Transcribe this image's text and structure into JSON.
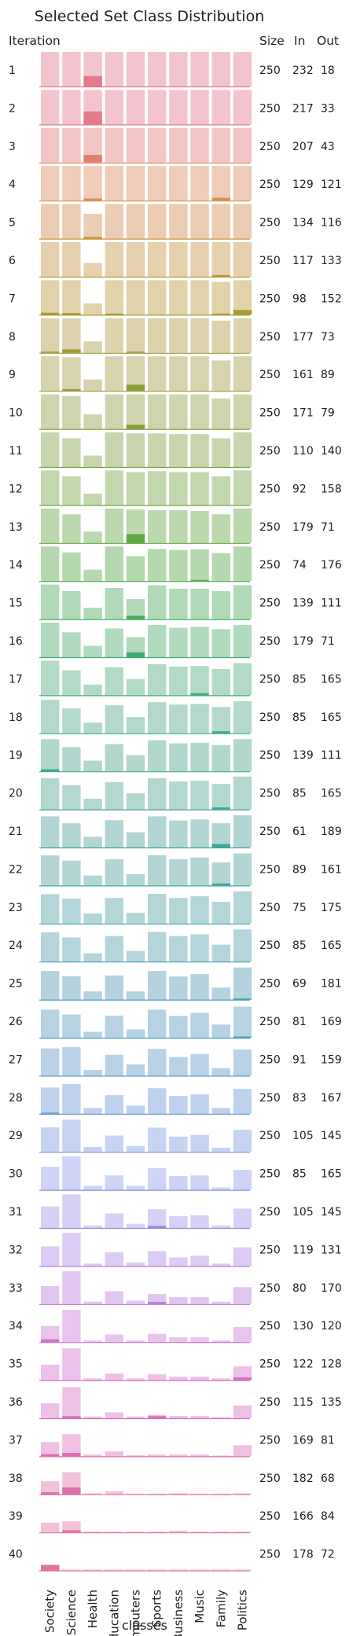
{
  "chart_data": {
    "type": "bar",
    "title": "Selected Set Class Distribution",
    "xlabel": "classes",
    "ylabel": "Iteration",
    "categories": [
      "Society",
      "Science",
      "Health",
      "Education",
      "Computers",
      "Sports",
      "Business",
      "Music",
      "Family",
      "Politics"
    ],
    "columns": {
      "size": "Size",
      "in": "In",
      "out": "Out"
    },
    "grid": false,
    "rows": [
      {
        "iteration": "1",
        "size": "250",
        "in": "232",
        "out": "18"
      },
      {
        "iteration": "2",
        "size": "250",
        "in": "217",
        "out": "33"
      },
      {
        "iteration": "3",
        "size": "250",
        "in": "207",
        "out": "43"
      },
      {
        "iteration": "4",
        "size": "250",
        "in": "129",
        "out": "121"
      },
      {
        "iteration": "5",
        "size": "250",
        "in": "134",
        "out": "116"
      },
      {
        "iteration": "6",
        "size": "250",
        "in": "117",
        "out": "133"
      },
      {
        "iteration": "7",
        "size": "250",
        "in": "98",
        "out": "152"
      },
      {
        "iteration": "8",
        "size": "250",
        "in": "177",
        "out": "73"
      },
      {
        "iteration": "9",
        "size": "250",
        "in": "161",
        "out": "89"
      },
      {
        "iteration": "10",
        "size": "250",
        "in": "171",
        "out": "79"
      },
      {
        "iteration": "11",
        "size": "250",
        "in": "110",
        "out": "140"
      },
      {
        "iteration": "12",
        "size": "250",
        "in": "92",
        "out": "158"
      },
      {
        "iteration": "13",
        "size": "250",
        "in": "179",
        "out": "71"
      },
      {
        "iteration": "14",
        "size": "250",
        "in": "74",
        "out": "176"
      },
      {
        "iteration": "15",
        "size": "250",
        "in": "139",
        "out": "111"
      },
      {
        "iteration": "16",
        "size": "250",
        "in": "179",
        "out": "71"
      },
      {
        "iteration": "17",
        "size": "250",
        "in": "85",
        "out": "165"
      },
      {
        "iteration": "18",
        "size": "250",
        "in": "85",
        "out": "165"
      },
      {
        "iteration": "19",
        "size": "250",
        "in": "139",
        "out": "111"
      },
      {
        "iteration": "20",
        "size": "250",
        "in": "85",
        "out": "165"
      },
      {
        "iteration": "21",
        "size": "250",
        "in": "61",
        "out": "189"
      },
      {
        "iteration": "22",
        "size": "250",
        "in": "89",
        "out": "161"
      },
      {
        "iteration": "23",
        "size": "250",
        "in": "75",
        "out": "175"
      },
      {
        "iteration": "24",
        "size": "250",
        "in": "85",
        "out": "165"
      },
      {
        "iteration": "25",
        "size": "250",
        "in": "69",
        "out": "181"
      },
      {
        "iteration": "26",
        "size": "250",
        "in": "81",
        "out": "169"
      },
      {
        "iteration": "27",
        "size": "250",
        "in": "91",
        "out": "159"
      },
      {
        "iteration": "28",
        "size": "250",
        "in": "83",
        "out": "167"
      },
      {
        "iteration": "29",
        "size": "250",
        "in": "105",
        "out": "145"
      },
      {
        "iteration": "30",
        "size": "250",
        "in": "85",
        "out": "165"
      },
      {
        "iteration": "31",
        "size": "250",
        "in": "105",
        "out": "145"
      },
      {
        "iteration": "32",
        "size": "250",
        "in": "119",
        "out": "131"
      },
      {
        "iteration": "33",
        "size": "250",
        "in": "80",
        "out": "170"
      },
      {
        "iteration": "34",
        "size": "250",
        "in": "130",
        "out": "120"
      },
      {
        "iteration": "35",
        "size": "250",
        "in": "122",
        "out": "128"
      },
      {
        "iteration": "36",
        "size": "250",
        "in": "115",
        "out": "135"
      },
      {
        "iteration": "37",
        "size": "250",
        "in": "169",
        "out": "81"
      },
      {
        "iteration": "38",
        "size": "250",
        "in": "182",
        "out": "68"
      },
      {
        "iteration": "39",
        "size": "250",
        "in": "166",
        "out": "84"
      },
      {
        "iteration": "40",
        "size": "250",
        "in": "178",
        "out": "72"
      }
    ],
    "pool_distribution": [
      [
        1,
        1,
        1,
        1,
        1,
        1,
        1,
        1,
        1,
        1
      ],
      [
        1,
        1,
        1,
        1,
        1,
        1,
        1,
        1,
        1,
        1
      ],
      [
        1,
        1,
        1,
        1,
        1,
        1,
        1,
        1,
        1,
        1
      ],
      [
        1,
        1,
        1,
        1,
        1,
        1,
        1,
        1,
        1,
        1
      ],
      [
        1,
        1,
        0.72,
        1,
        1,
        1,
        1,
        1,
        1,
        1
      ],
      [
        1,
        1,
        0.4,
        1,
        1,
        1,
        1,
        1,
        1,
        1
      ],
      [
        1,
        1,
        0.33,
        1,
        1,
        1,
        1,
        1,
        0.95,
        1
      ],
      [
        1,
        1,
        0.33,
        1,
        1,
        1,
        1,
        1,
        0.93,
        1
      ],
      [
        1,
        0.97,
        0.33,
        1,
        1,
        1,
        1,
        1,
        0.88,
        1
      ],
      [
        1,
        0.95,
        0.42,
        1,
        1,
        1,
        1,
        1,
        0.88,
        1
      ],
      [
        1,
        0.83,
        0.33,
        1,
        0.97,
        0.97,
        0.95,
        0.95,
        0.83,
        1
      ],
      [
        1,
        0.83,
        0.33,
        1,
        0.95,
        0.98,
        0.95,
        0.95,
        0.83,
        1
      ],
      [
        1,
        0.83,
        0.33,
        1,
        0.97,
        0.95,
        0.95,
        0.93,
        0.83,
        1
      ],
      [
        1,
        0.83,
        0.33,
        1,
        0.72,
        0.93,
        0.9,
        0.92,
        0.81,
        1
      ],
      [
        1,
        0.81,
        0.33,
        0.9,
        0.58,
        0.98,
        0.88,
        0.88,
        0.81,
        0.98
      ],
      [
        1,
        0.72,
        0.33,
        0.83,
        0.58,
        0.93,
        0.85,
        0.88,
        0.81,
        0.93
      ],
      [
        1,
        0.72,
        0.31,
        0.81,
        0.47,
        0.9,
        0.83,
        0.85,
        0.76,
        0.93
      ],
      [
        0.97,
        0.72,
        0.31,
        0.81,
        0.47,
        0.9,
        0.83,
        0.85,
        0.76,
        0.93
      ],
      [
        0.93,
        0.7,
        0.31,
        0.79,
        0.47,
        0.9,
        0.81,
        0.83,
        0.76,
        0.93
      ],
      [
        0.9,
        0.7,
        0.31,
        0.79,
        0.47,
        0.9,
        0.81,
        0.83,
        0.74,
        0.95
      ],
      [
        0.9,
        0.7,
        0.31,
        0.79,
        0.44,
        0.9,
        0.78,
        0.81,
        0.7,
        0.93
      ],
      [
        0.87,
        0.72,
        0.29,
        0.76,
        0.33,
        0.88,
        0.76,
        0.81,
        0.67,
        0.93
      ],
      [
        0.85,
        0.72,
        0.29,
        0.74,
        0.31,
        0.86,
        0.74,
        0.79,
        0.63,
        0.93
      ],
      [
        0.85,
        0.7,
        0.24,
        0.74,
        0.31,
        0.86,
        0.74,
        0.79,
        0.49,
        0.93
      ],
      [
        0.83,
        0.68,
        0.24,
        0.7,
        0.24,
        0.83,
        0.67,
        0.74,
        0.35,
        0.93
      ],
      [
        0.81,
        0.67,
        0.17,
        0.64,
        0.24,
        0.81,
        0.63,
        0.72,
        0.38,
        0.9
      ],
      [
        0.79,
        0.83,
        0.17,
        0.61,
        0.33,
        0.78,
        0.54,
        0.63,
        0.22,
        0.76
      ],
      [
        0.76,
        0.86,
        0.17,
        0.54,
        0.24,
        0.74,
        0.52,
        0.56,
        0.17,
        0.72
      ],
      [
        0.71,
        0.93,
        0.14,
        0.47,
        0.17,
        0.7,
        0.44,
        0.49,
        0.12,
        0.64
      ],
      [
        0.67,
        0.97,
        0.12,
        0.42,
        0.12,
        0.63,
        0.4,
        0.42,
        0.07,
        0.58
      ],
      [
        0.62,
        0.97,
        0.07,
        0.42,
        0.12,
        0.54,
        0.34,
        0.37,
        0.07,
        0.56
      ],
      [
        0.57,
        0.96,
        0.07,
        0.4,
        0.1,
        0.43,
        0.25,
        0.3,
        0.07,
        0.54
      ],
      [
        0.52,
        0.95,
        0.07,
        0.37,
        0.1,
        0.29,
        0.2,
        0.2,
        0.07,
        0.49
      ],
      [
        0.47,
        0.93,
        0.05,
        0.22,
        0.05,
        0.24,
        0.14,
        0.14,
        0.05,
        0.44
      ],
      [
        0.45,
        0.92,
        0.05,
        0.19,
        0.05,
        0.17,
        0.1,
        0.1,
        0.05,
        0.4
      ],
      [
        0.43,
        0.9,
        0.05,
        0.17,
        0.05,
        0.1,
        0.07,
        0.07,
        0.03,
        0.37
      ],
      [
        0.41,
        0.64,
        0.05,
        0.14,
        0.03,
        0.05,
        0.05,
        0.05,
        0.02,
        0.32
      ],
      [
        0.38,
        0.64,
        0.03,
        0.09,
        0.02,
        0.02,
        0.03,
        0.02,
        0.02,
        0.03
      ],
      [
        0.28,
        0.32,
        0.02,
        0.02,
        0.01,
        0.02,
        0.05,
        0.02,
        0.01,
        0.02
      ],
      [
        0.05,
        0.02,
        0.01,
        0.01,
        0.01,
        0.01,
        0.01,
        0.01,
        0.01,
        0.01
      ]
    ],
    "selected_distribution": [
      [
        0,
        0,
        0.3,
        0,
        0,
        0,
        0,
        0,
        0,
        0
      ],
      [
        0,
        0,
        0.38,
        0,
        0,
        0,
        0,
        0,
        0,
        0
      ],
      [
        0,
        0,
        0.22,
        0,
        0,
        0,
        0,
        0,
        0,
        0
      ],
      [
        0,
        0,
        0.06,
        0,
        0,
        0,
        0,
        0,
        0.08,
        0
      ],
      [
        0,
        0,
        0.05,
        0,
        0,
        0,
        0,
        0,
        0,
        0
      ],
      [
        0,
        0,
        0,
        0,
        0,
        0,
        0,
        0,
        0.05,
        0
      ],
      [
        0.06,
        0.05,
        0,
        0.02,
        0,
        0,
        0,
        0,
        0.02,
        0.14
      ],
      [
        0.02,
        0.1,
        0,
        0,
        0.02,
        0,
        0,
        0,
        0,
        0
      ],
      [
        0,
        0.05,
        0,
        0,
        0.18,
        0,
        0,
        0,
        0,
        0
      ],
      [
        0,
        0,
        0,
        0,
        0.12,
        0,
        0,
        0,
        0,
        0
      ],
      [
        0,
        0,
        0,
        0,
        0,
        0,
        0,
        0,
        0,
        0
      ],
      [
        0,
        0,
        0,
        0,
        0,
        0,
        0,
        0,
        0,
        0
      ],
      [
        0,
        0,
        0,
        0,
        0.26,
        0,
        0,
        0,
        0,
        0
      ],
      [
        0,
        0,
        0,
        0,
        0,
        0,
        0,
        0.02,
        0,
        0
      ],
      [
        0,
        0,
        0,
        0,
        0.1,
        0,
        0,
        0,
        0,
        0
      ],
      [
        0,
        0,
        0,
        0,
        0.14,
        0,
        0,
        0,
        0,
        0
      ],
      [
        0,
        0,
        0,
        0,
        0,
        0,
        0,
        0.06,
        0,
        0
      ],
      [
        0,
        0,
        0,
        0,
        0,
        0,
        0,
        0,
        0.06,
        0
      ],
      [
        0.06,
        0,
        0,
        0,
        0,
        0,
        0,
        0,
        0,
        0
      ],
      [
        0,
        0,
        0,
        0,
        0,
        0,
        0,
        0,
        0.06,
        0
      ],
      [
        0,
        0,
        0,
        0,
        0,
        0,
        0,
        0,
        0.1,
        0
      ],
      [
        0,
        0,
        0,
        0,
        0,
        0,
        0,
        0,
        0.06,
        0
      ],
      [
        0,
        0,
        0,
        0,
        0,
        0,
        0,
        0,
        0,
        0
      ],
      [
        0,
        0,
        0,
        0,
        0,
        0,
        0,
        0,
        0,
        0
      ],
      [
        0,
        0,
        0,
        0,
        0,
        0,
        0,
        0,
        0,
        0.02
      ],
      [
        0,
        0,
        0,
        0,
        0,
        0,
        0,
        0,
        0,
        0.02
      ],
      [
        0,
        0,
        0,
        0,
        0,
        0,
        0,
        0,
        0,
        0
      ],
      [
        0.03,
        0,
        0,
        0,
        0,
        0,
        0,
        0,
        0,
        0
      ],
      [
        0,
        0,
        0,
        0,
        0,
        0,
        0,
        0,
        0,
        0
      ],
      [
        0,
        0,
        0,
        0,
        0,
        0,
        0,
        0,
        0,
        0
      ],
      [
        0,
        0,
        0,
        0,
        0,
        0.06,
        0,
        0,
        0,
        0
      ],
      [
        0,
        0,
        0,
        0,
        0,
        0,
        0,
        0,
        0,
        0
      ],
      [
        0,
        0,
        0,
        0,
        0,
        0.06,
        0,
        0,
        0,
        0
      ],
      [
        0.08,
        0,
        0,
        0,
        0,
        0,
        0,
        0,
        0,
        0
      ],
      [
        0,
        0,
        0,
        0,
        0,
        0,
        0,
        0,
        0,
        0.08
      ],
      [
        0,
        0.06,
        0,
        0,
        0,
        0.06,
        0,
        0,
        0,
        0
      ],
      [
        0.06,
        0.1,
        0,
        0,
        0,
        0,
        0,
        0,
        0,
        0
      ],
      [
        0.06,
        0.2,
        0,
        0,
        0,
        0,
        0,
        0,
        0,
        0
      ],
      [
        0,
        0.06,
        0,
        0,
        0,
        0,
        0,
        0,
        0,
        0
      ],
      [
        0.16,
        0,
        0,
        0,
        0,
        0,
        0,
        0,
        0,
        0
      ]
    ],
    "row_colors": [
      "#f4c4ce",
      "#f4c4ce",
      "#f4c5c6",
      "#efcbb8",
      "#ecccb2",
      "#e7d0ad",
      "#e2d2aa",
      "#dcd2ab",
      "#d6d3ad",
      "#d0d4ad",
      "#c9d5ad",
      "#c3d7ad",
      "#bcd8ad",
      "#b5d9ae",
      "#b0dab8",
      "#b0dbbf",
      "#b2dac6",
      "#b2d9ca",
      "#b2d8ce",
      "#b2d8d0",
      "#b2d6d3",
      "#b3d6d5",
      "#b3d6d8",
      "#b4d5dc",
      "#b4d3df",
      "#b7d2e3",
      "#bad2e7",
      "#bfd2ed",
      "#c7d3f3",
      "#cfd3f6",
      "#d6d0f6",
      "#dccbf4",
      "#e2c6f2",
      "#e9c4ee",
      "#edc1e9",
      "#efc0e6",
      "#f0c0e2",
      "#f2c1db",
      "#f3c2d7",
      "#f4c3d2"
    ],
    "selected_colors": [
      "#e37b8d",
      "#e37b8d",
      "#e0806d",
      "#d59050",
      "#c99640",
      "#b79a38",
      "#a69b35",
      "#999a36",
      "#8f9d38",
      "#849e39",
      "#79a03a",
      "#6ea23d",
      "#62a643",
      "#56a94d",
      "#48ab62",
      "#3fab70",
      "#3eaa7e",
      "#3fa987",
      "#3fa78f",
      "#40a696",
      "#41a59c",
      "#42a4a0",
      "#43a3a5",
      "#45a2ac",
      "#47a0b3",
      "#4c9db9",
      "#5699c3",
      "#6694cd",
      "#7891d6",
      "#8a8dda",
      "#9c87da",
      "#ae80d8",
      "#be79d5",
      "#cb73cc",
      "#d270c4",
      "#d66fbc",
      "#d96fb2",
      "#dc71a6",
      "#df739e",
      "#e0758f"
    ]
  }
}
